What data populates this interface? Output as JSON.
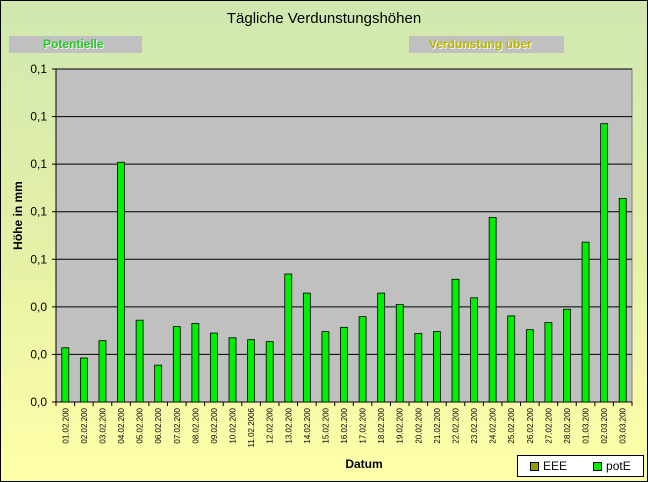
{
  "chart_data": {
    "type": "bar",
    "title": "Tägliche Verdunstungshöhen",
    "annotations": [
      "Potentielle",
      "Verdunstung über"
    ],
    "xlabel": "Datum",
    "ylabel": "Höhe in mm",
    "ylim": [
      0,
      0.14
    ],
    "y_tick_values": [
      0,
      0.02,
      0.04,
      0.06,
      0.08,
      0.1,
      0.12,
      0.14
    ],
    "y_tick_labels": [
      "0,0",
      "0,0",
      "0,0",
      "0,1",
      "0,1",
      "0,1",
      "0,1",
      "0,1"
    ],
    "grid": true,
    "legend_position": "bottom-right",
    "categories": [
      "01.02.200",
      "02.02.200",
      "03.02.200",
      "04.02.200",
      "05.02.200",
      "06.02.200",
      "07.02.200",
      "08.02.200",
      "09.02.200",
      "10.02.200",
      "11.02.2006",
      "12.02.200",
      "13.02.200",
      "14.02.200",
      "15.02.200",
      "16.02.200",
      "17.02.200",
      "18.02.200",
      "19.02.200",
      "20.02.200",
      "21.02.200",
      "22.02.200",
      "23.02.200",
      "24.02.200",
      "25.02.200",
      "26.02.200",
      "27.02.200",
      "28.02.200",
      "01.03.200",
      "02.03.200",
      "03.03.200"
    ],
    "series": [
      {
        "name": "EEE",
        "color": "#999900",
        "values": [
          0,
          0,
          0,
          0,
          0,
          0,
          0,
          0,
          0,
          0,
          0,
          0,
          0,
          0,
          0,
          0,
          0,
          0,
          0,
          0,
          0,
          0,
          0,
          0,
          0,
          0,
          0,
          0,
          0,
          0,
          0
        ]
      },
      {
        "name": "potE",
        "color": "#00ee00",
        "values": [
          0.0228,
          0.0185,
          0.0258,
          0.1008,
          0.0344,
          0.0155,
          0.0317,
          0.033,
          0.029,
          0.027,
          0.0262,
          0.0254,
          0.0538,
          0.0458,
          0.0296,
          0.0314,
          0.0359,
          0.0458,
          0.041,
          0.0288,
          0.0296,
          0.0516,
          0.0438,
          0.0776,
          0.0362,
          0.0304,
          0.0334,
          0.039,
          0.0672,
          0.117,
          0.0856
        ]
      }
    ],
    "colors": {
      "plot_background": "#c0c0c0",
      "bar_outline": "#000000",
      "accent_green": "#29c829",
      "accent_olive": "#b8b800"
    }
  }
}
